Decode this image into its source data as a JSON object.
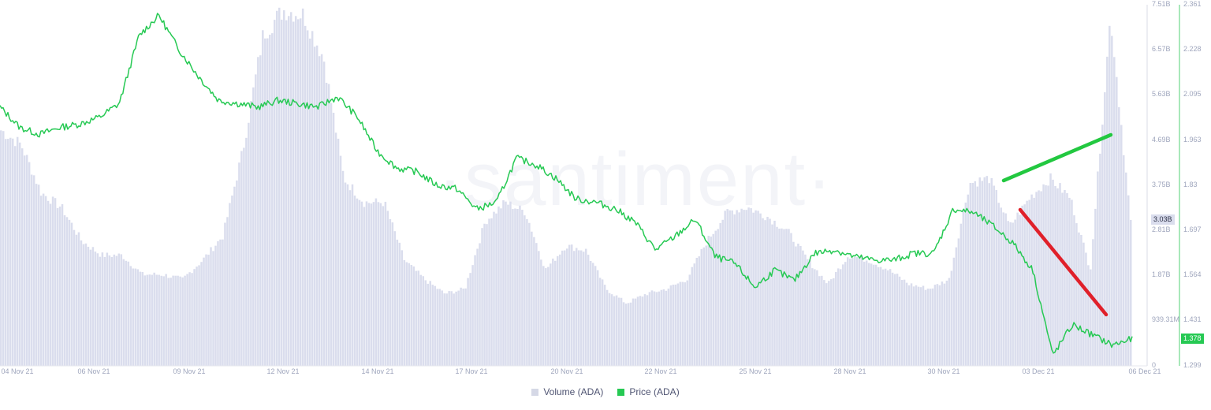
{
  "chart_data": {
    "type": "bar+line",
    "title": "",
    "watermark": "·santiment·",
    "x_ticks": [
      "04 Nov 21",
      "06 Nov 21",
      "09 Nov 21",
      "12 Nov 21",
      "14 Nov 21",
      "17 Nov 21",
      "20 Nov 21",
      "22 Nov 21",
      "25 Nov 21",
      "28 Nov 21",
      "30 Nov 21",
      "03 Dec 21",
      "06 Dec 21"
    ],
    "y_left_ticks": [
      "7.51B",
      "6.57B",
      "5.63B",
      "4.69B",
      "3.75B",
      "2.81B",
      "1.87B",
      "939.31M",
      "0"
    ],
    "y_right_ticks": [
      "2.361",
      "2.228",
      "2.095",
      "1.963",
      "1.83",
      "1.697",
      "1.564",
      "1.431",
      "1.299"
    ],
    "y_left_range": [
      0,
      7.51
    ],
    "y_right_range": [
      1.299,
      2.361
    ],
    "series": [
      {
        "name": "Volume (ADA)",
        "type": "bar",
        "unit": "B",
        "color": "#dadded",
        "current_label": "3.03B",
        "values": [
          4.9,
          4.6,
          3.6,
          3.3,
          2.6,
          2.3,
          2.3,
          1.9,
          1.9,
          1.8,
          2.2,
          2.7,
          4.5,
          6.9,
          7.4,
          7.3,
          6.4,
          3.9,
          3.4,
          3.4,
          2.2,
          1.8,
          1.5,
          1.6,
          3.0,
          3.4,
          3.2,
          2.0,
          2.5,
          2.4,
          1.6,
          1.3,
          1.5,
          1.6,
          1.8,
          2.6,
          3.2,
          3.3,
          3.1,
          2.8,
          2.2,
          1.7,
          2.3,
          2.2,
          2.0,
          1.7,
          1.6,
          1.8,
          3.8,
          3.9,
          2.9,
          3.5,
          3.9,
          3.5,
          2.0,
          7.3,
          3.0
        ]
      },
      {
        "name": "Price (ADA)",
        "type": "line",
        "color": "#26c953",
        "current_label": "1.378",
        "values": [
          2.06,
          2.0,
          1.98,
          2.0,
          2.01,
          2.03,
          2.07,
          2.27,
          2.33,
          2.23,
          2.15,
          2.08,
          2.07,
          2.06,
          2.08,
          2.07,
          2.06,
          2.09,
          2.03,
          1.93,
          1.88,
          1.87,
          1.83,
          1.82,
          1.76,
          1.78,
          1.91,
          1.89,
          1.85,
          1.79,
          1.78,
          1.76,
          1.72,
          1.64,
          1.68,
          1.73,
          1.62,
          1.6,
          1.53,
          1.58,
          1.55,
          1.63,
          1.64,
          1.62,
          1.61,
          1.61,
          1.63,
          1.63,
          1.76,
          1.75,
          1.71,
          1.66,
          1.58,
          1.33,
          1.42,
          1.39,
          1.36,
          1.378
        ]
      }
    ],
    "annotations": [
      {
        "type": "trendline",
        "color": "#22c840",
        "from": [
          1273,
          229
        ],
        "to": [
          1409,
          171
        ],
        "meaning": "volume rising"
      },
      {
        "type": "trendline",
        "color": "#e0202a",
        "from": [
          1294,
          266
        ],
        "to": [
          1403,
          399
        ],
        "meaning": "price falling"
      }
    ],
    "legend_position": "bottom",
    "grid": false
  },
  "legend": {
    "items": [
      {
        "label": "Volume (ADA)",
        "color": "#d5d8e6"
      },
      {
        "label": "Price (ADA)",
        "color": "#26c953"
      }
    ]
  },
  "badges": {
    "volume_current": "3.03B",
    "price_current": "1.378"
  }
}
